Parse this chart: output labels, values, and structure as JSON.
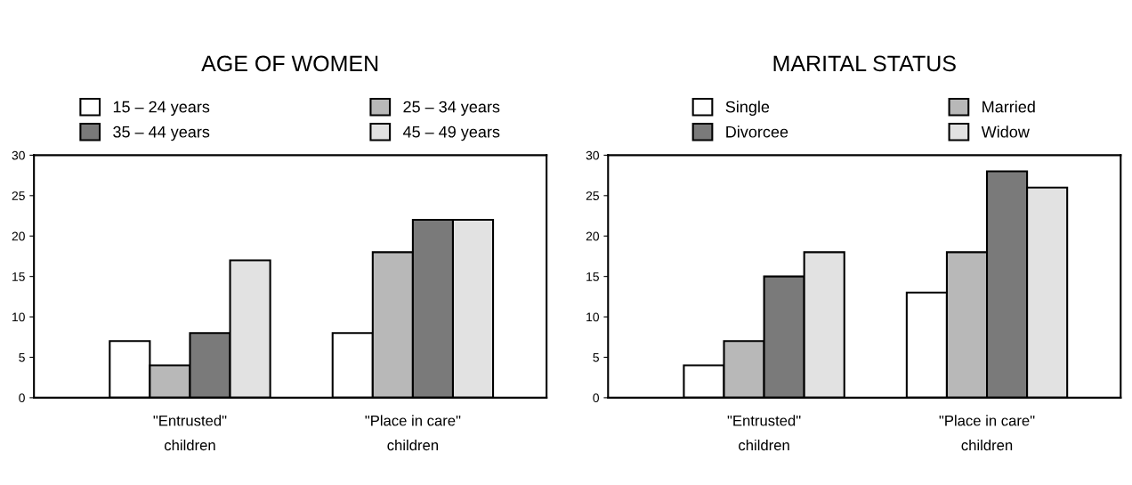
{
  "chart_data": [
    {
      "type": "bar",
      "title": "AGE OF WOMEN",
      "categories": [
        "\"Entrusted\"\nchildren",
        "\"Place in care\"\nchildren"
      ],
      "ylim": [
        0,
        30
      ],
      "yticks": [
        0,
        5,
        10,
        15,
        20,
        25,
        30
      ],
      "legend": "top",
      "grid": false,
      "series": [
        {
          "name": "15 – 24 years",
          "color": "#ffffff",
          "values": [
            7,
            8
          ]
        },
        {
          "name": "25 – 34 years",
          "color": "#b8b8b8",
          "values": [
            4,
            18
          ]
        },
        {
          "name": "35 – 44 years",
          "color": "#7a7a7a",
          "values": [
            8,
            22
          ]
        },
        {
          "name": "45 – 49 years",
          "color": "#e2e2e2",
          "values": [
            17,
            22
          ]
        }
      ]
    },
    {
      "type": "bar",
      "title": "MARITAL STATUS",
      "categories": [
        "\"Entrusted\"\nchildren",
        "\"Place in care\"\nchildren"
      ],
      "ylim": [
        0,
        30
      ],
      "yticks": [
        0,
        5,
        10,
        15,
        20,
        25,
        30
      ],
      "legend": "top",
      "grid": false,
      "series": [
        {
          "name": "Single",
          "color": "#ffffff",
          "values": [
            4,
            13
          ]
        },
        {
          "name": "Married",
          "color": "#b8b8b8",
          "values": [
            7,
            18
          ]
        },
        {
          "name": "Divorcee",
          "color": "#7a7a7a",
          "values": [
            15,
            28
          ]
        },
        {
          "name": "Widow",
          "color": "#e2e2e2",
          "values": [
            18,
            26
          ]
        }
      ]
    }
  ]
}
